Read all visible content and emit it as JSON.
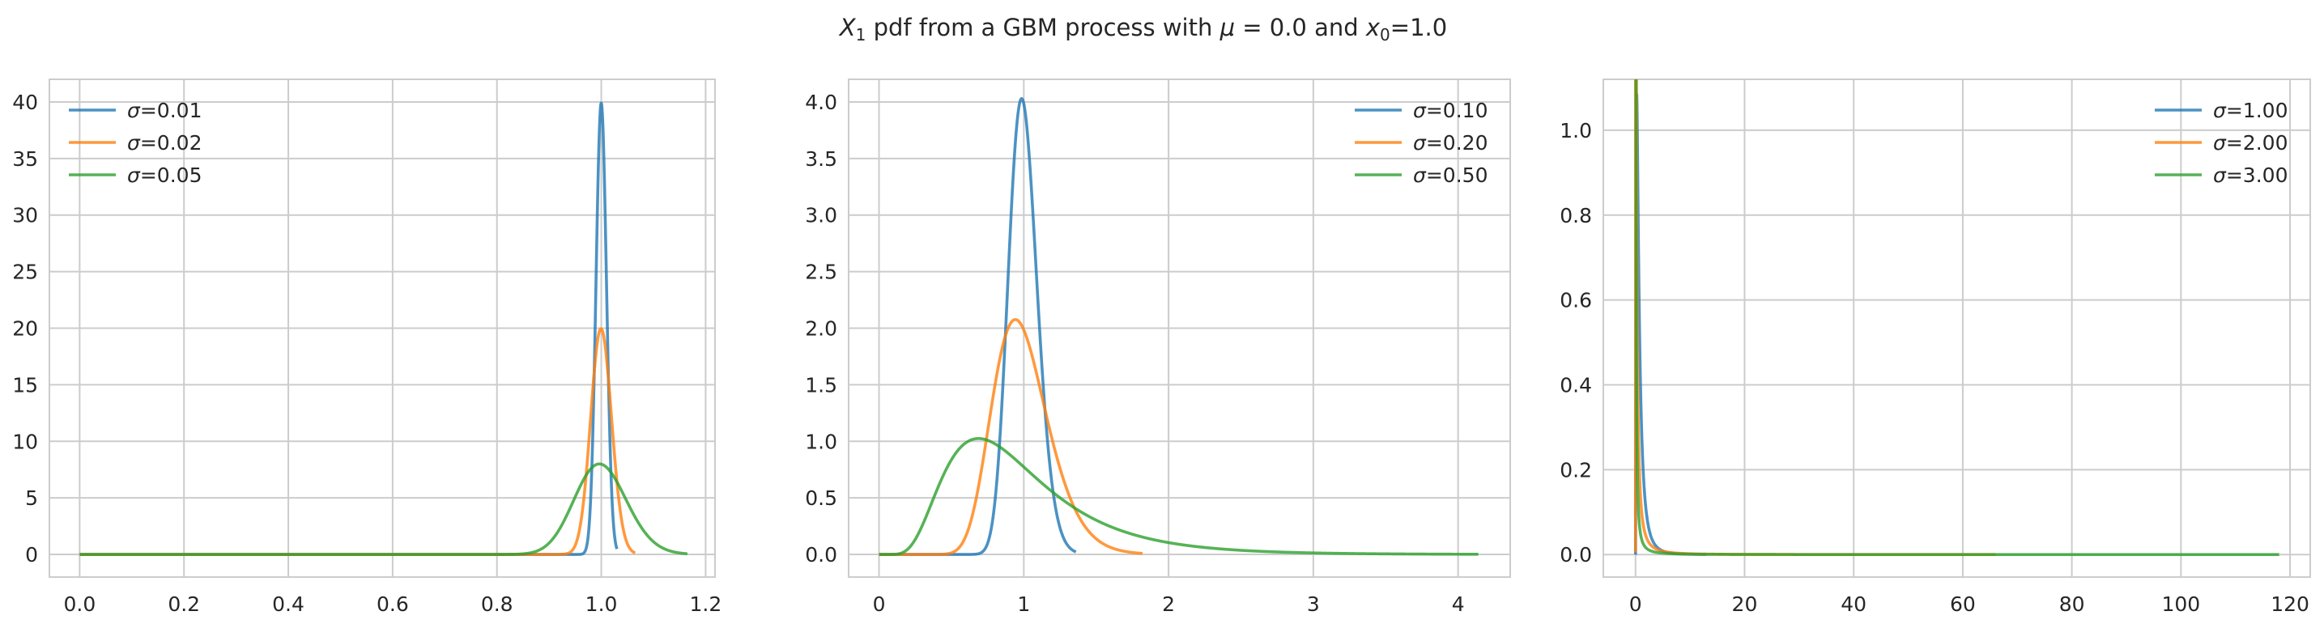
{
  "figure": {
    "title_prefix": "X",
    "title_sub1": "1",
    "title_mid": " pdf from a GBM process with ",
    "title_mu": "μ",
    "title_eq": " = 0.0 and ",
    "title_x": "x",
    "title_sub0": "0",
    "title_end": "=1.0"
  },
  "chart_data": [
    {
      "type": "line",
      "title": "",
      "xlabel": "",
      "ylabel": "",
      "xlim": [
        -0.058,
        1.218
      ],
      "ylim": [
        -2.0,
        42.0
      ],
      "xticks": [
        0.0,
        0.2,
        0.4,
        0.6,
        0.8,
        1.0,
        1.2
      ],
      "xtick_labels": [
        "0.0",
        "0.2",
        "0.4",
        "0.6",
        "0.8",
        "1.0",
        "1.2"
      ],
      "yticks": [
        0,
        5,
        10,
        15,
        20,
        25,
        30,
        35,
        40
      ],
      "ytick_labels": [
        "0",
        "5",
        "10",
        "15",
        "20",
        "25",
        "30",
        "35",
        "40"
      ],
      "grid": true,
      "legend_position": "upper-left",
      "mu": 0.0,
      "x0": 1.0,
      "series": [
        {
          "name": "σ=0.01",
          "sigma": 0.01,
          "x_max": 1.03,
          "color": "#1f77b4"
        },
        {
          "name": "σ=0.02",
          "sigma": 0.02,
          "x_max": 1.065,
          "color": "#ff7f0e"
        },
        {
          "name": "σ=0.05",
          "sigma": 0.05,
          "x_max": 1.165,
          "color": "#2ca02c"
        }
      ]
    },
    {
      "type": "line",
      "title": "",
      "xlabel": "",
      "ylabel": "",
      "xlim": [
        -0.21,
        4.36
      ],
      "ylim": [
        -0.2,
        4.2
      ],
      "xticks": [
        0,
        1,
        2,
        3,
        4
      ],
      "xtick_labels": [
        "0",
        "1",
        "2",
        "3",
        "4"
      ],
      "yticks": [
        0.0,
        0.5,
        1.0,
        1.5,
        2.0,
        2.5,
        3.0,
        3.5,
        4.0
      ],
      "ytick_labels": [
        "0.0",
        "0.5",
        "1.0",
        "1.5",
        "2.0",
        "2.5",
        "3.0",
        "3.5",
        "4.0"
      ],
      "grid": true,
      "legend_position": "upper-right",
      "mu": 0.0,
      "x0": 1.0,
      "series": [
        {
          "name": "σ=0.10",
          "sigma": 0.1,
          "x_max": 1.36,
          "color": "#1f77b4"
        },
        {
          "name": "σ=0.20",
          "sigma": 0.2,
          "x_max": 1.82,
          "color": "#ff7f0e"
        },
        {
          "name": "σ=0.50",
          "sigma": 0.5,
          "x_max": 4.14,
          "color": "#2ca02c"
        }
      ]
    },
    {
      "type": "line",
      "title": "",
      "xlabel": "",
      "ylabel": "",
      "xlim": [
        -5.9,
        123.7
      ],
      "ylim": [
        -0.053,
        1.12
      ],
      "xticks": [
        0,
        20,
        40,
        60,
        80,
        100,
        120
      ],
      "xtick_labels": [
        "0",
        "20",
        "40",
        "60",
        "80",
        "100",
        "120"
      ],
      "yticks": [
        0.0,
        0.2,
        0.4,
        0.6,
        0.8,
        1.0
      ],
      "ytick_labels": [
        "0.0",
        "0.2",
        "0.4",
        "0.6",
        "0.8",
        "1.0"
      ],
      "grid": true,
      "legend_position": "upper-right",
      "mu": 0.0,
      "x0": 1.0,
      "series": [
        {
          "name": "σ=1.00",
          "sigma": 1.0,
          "x_max": 13.0,
          "color": "#1f77b4"
        },
        {
          "name": "σ=2.00",
          "sigma": 2.0,
          "x_max": 66.0,
          "color": "#ff7f0e"
        },
        {
          "name": "σ=3.00",
          "sigma": 3.0,
          "x_max": 118.0,
          "color": "#2ca02c"
        }
      ]
    }
  ]
}
